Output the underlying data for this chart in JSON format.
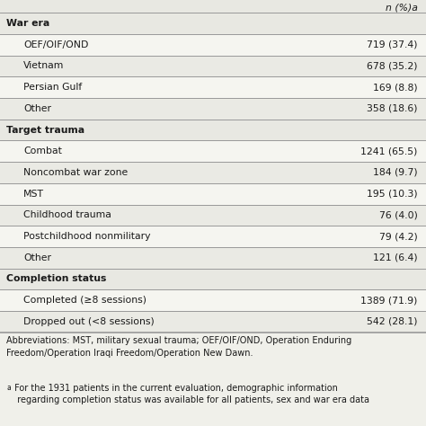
{
  "rows": [
    {
      "label": "War era",
      "value": "",
      "level": 0,
      "bg": "#e8e8e2"
    },
    {
      "label": "OEF/OIF/OND",
      "value": "719 (37.4)",
      "level": 1,
      "bg": "#f5f5f0"
    },
    {
      "label": "Vietnam",
      "value": "678 (35.2)",
      "level": 1,
      "bg": "#eaeae4"
    },
    {
      "label": "Persian Gulf",
      "value": "169 (8.8)",
      "level": 1,
      "bg": "#f5f5f0"
    },
    {
      "label": "Other",
      "value": "358 (18.6)",
      "level": 1,
      "bg": "#eaeae4"
    },
    {
      "label": "Target trauma",
      "value": "",
      "level": 0,
      "bg": "#e8e8e2"
    },
    {
      "label": "Combat",
      "value": "1241 (65.5)",
      "level": 1,
      "bg": "#f5f5f0"
    },
    {
      "label": "Noncombat war zone",
      "value": "184 (9.7)",
      "level": 1,
      "bg": "#eaeae4"
    },
    {
      "label": "MST",
      "value": "195 (10.3)",
      "level": 1,
      "bg": "#f5f5f0"
    },
    {
      "label": "Childhood trauma",
      "value": "76 (4.0)",
      "level": 1,
      "bg": "#eaeae4"
    },
    {
      "label": "Postchildhood nonmilitary",
      "value": "79 (4.2)",
      "level": 1,
      "bg": "#f5f5f0"
    },
    {
      "label": "Other",
      "value": "121 (6.4)",
      "level": 1,
      "bg": "#eaeae4"
    },
    {
      "label": "Completion status",
      "value": "",
      "level": 0,
      "bg": "#e8e8e2"
    },
    {
      "label": "Completed (≥8 sessions)",
      "value": "1389 (71.9)",
      "level": 1,
      "bg": "#f5f5f0"
    },
    {
      "label": "Dropped out (<8 sessions)",
      "value": "542 (28.1)",
      "level": 1,
      "bg": "#eaeae4"
    }
  ],
  "top_partial_value": "n (%)a",
  "footnote1": "Abbreviations: MST, military sexual trauma; OEF/OIF/OND, Operation Enduring\nFreedom/Operation Iraqi Freedom/Operation New Dawn.",
  "footnote2_super": "a",
  "footnote2_text": " For the 1931 patients in the current evaluation, demographic information\n  regarding completion status was available for all patients, sex and war era data",
  "bg_color": "#f0f0ea",
  "divider_color": "#999999",
  "text_color": "#1a1a1a",
  "label_font_size": 7.8,
  "value_font_size": 7.8,
  "footnote_font_size": 7.0
}
